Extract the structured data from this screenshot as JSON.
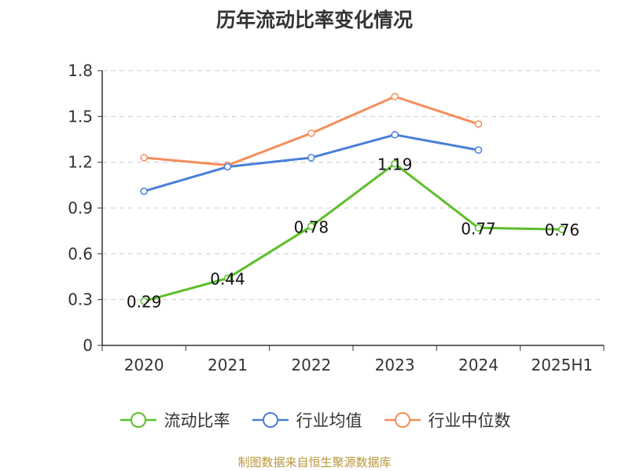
{
  "title": "历年流动比率变化情况",
  "source": "制图数据来自恒生聚源数据库",
  "chart_data": {
    "type": "line",
    "title": "历年流动比率变化情况",
    "categories": [
      "2020",
      "2021",
      "2022",
      "2023",
      "2024",
      "2025H1"
    ],
    "ylim": [
      0,
      1.8
    ],
    "yticks": [
      "0",
      "0.3",
      "0.6",
      "0.9",
      "1.2",
      "1.5",
      "1.8"
    ],
    "grid": true,
    "legend_position": "bottom",
    "series": [
      {
        "name": "流动比率",
        "color": "#5cbf2a",
        "values": [
          0.29,
          0.44,
          0.78,
          1.19,
          0.77,
          0.76
        ],
        "labels": [
          "0.29",
          "0.44",
          "0.78",
          "1.19",
          "0.77",
          "0.76"
        ]
      },
      {
        "name": "行业均值",
        "color": "#4a7fd8",
        "values": [
          1.01,
          1.17,
          1.23,
          1.38,
          1.28,
          null
        ]
      },
      {
        "name": "行业中位数",
        "color": "#f58e5c",
        "values": [
          1.23,
          1.18,
          1.39,
          1.63,
          1.45,
          null
        ]
      }
    ]
  }
}
